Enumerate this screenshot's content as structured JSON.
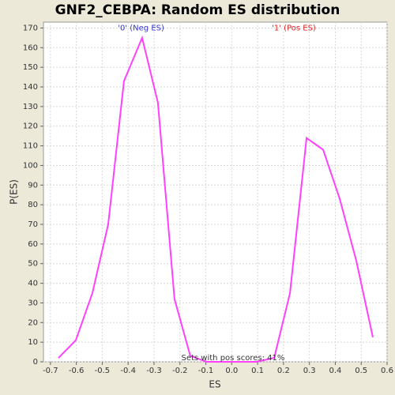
{
  "chart_data": {
    "type": "line",
    "title": "GNF2_CEBPA: Random ES distribution",
    "x_label": "ES",
    "y_label": "P(ES)",
    "x": [
      -0.669,
      -0.602,
      -0.538,
      -0.477,
      -0.416,
      -0.346,
      -0.285,
      -0.221,
      -0.16,
      -0.096,
      -0.032,
      0.032,
      0.096,
      0.164,
      0.225,
      0.289,
      0.353,
      0.417,
      0.481,
      0.545
    ],
    "series": [
      {
        "color": "#ff40ff",
        "values": [
          2,
          11,
          35,
          70,
          143,
          165,
          132,
          32,
          3,
          0,
          0,
          0,
          0,
          2,
          35,
          114,
          108,
          83,
          51.5,
          12.5
        ]
      }
    ],
    "xlim": [
      -0.727,
      0.6
    ],
    "ylim": [
      0,
      173
    ],
    "xticks": [
      -0.7,
      -0.6,
      -0.5,
      -0.4,
      -0.3,
      -0.2,
      -0.1,
      {
        "value": 0,
        "label": "0.0"
      },
      0.1,
      0.2,
      0.3,
      0.4,
      0.5,
      0.6
    ],
    "yticks": [
      0,
      10,
      20,
      30,
      40,
      50,
      60,
      70,
      80,
      90,
      100,
      110,
      120,
      130,
      140,
      150,
      160,
      170
    ],
    "grid": true,
    "annotations": [
      {
        "text": "'0' (Neg ES)",
        "x": -0.35,
        "y": 170,
        "color": "#3333cc"
      },
      {
        "text": "'1' (Pos ES)",
        "x": 0.24,
        "y": 170,
        "color": "#dd2222"
      },
      {
        "text": "Sets with pos scores: 41%",
        "x": 0.005,
        "y": 2
      }
    ]
  }
}
